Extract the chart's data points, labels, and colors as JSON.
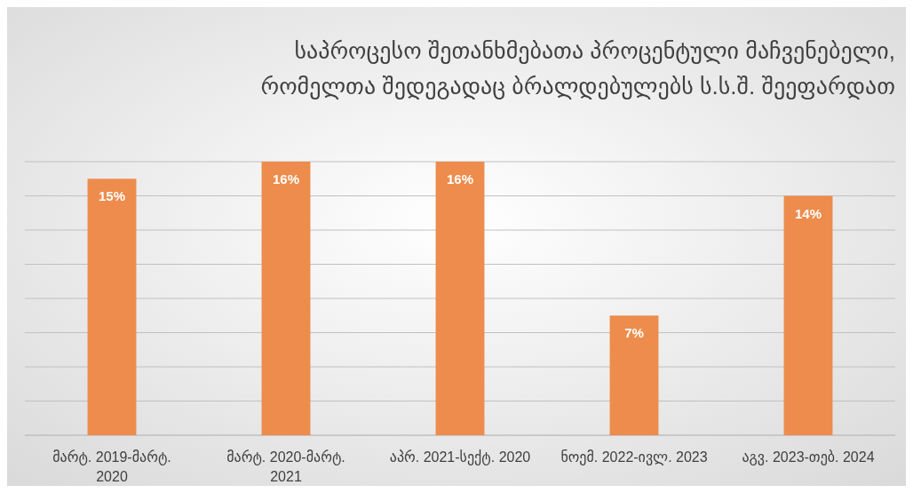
{
  "chart_data": {
    "type": "bar",
    "title": "საპროცესო შეთანხმებათა პროცენტული მაჩვენებელი,\nრომელთა შედეგადაც ბრალდებულებს ს.ს.შ. შეეფარდათ",
    "categories": [
      "მარტ. 2019-მარტ. 2020",
      "მარტ. 2020-მარტ. 2021",
      "აპრ. 2021-სექტ. 2020",
      "ნოემ. 2022-ივლ. 2023",
      "აგვ. 2023-თებ. 2024"
    ],
    "values": [
      15,
      16,
      16,
      7,
      14
    ],
    "value_labels": [
      "15%",
      "16%",
      "16%",
      "7%",
      "14%"
    ],
    "color": "#ed8c4c",
    "ylim": [
      0,
      16
    ],
    "yticks": [
      {
        "value": 0,
        "label": null
      },
      {
        "value": 2,
        "label": null
      },
      {
        "value": 4,
        "label": null
      },
      {
        "value": 6,
        "label": null
      },
      {
        "value": 8,
        "label": null
      },
      {
        "value": 10,
        "label": null
      },
      {
        "value": 12,
        "label": null
      },
      {
        "value": 14,
        "label": null
      },
      {
        "value": 16,
        "label": null
      }
    ],
    "tick_labels": "x",
    "grid": "y"
  }
}
